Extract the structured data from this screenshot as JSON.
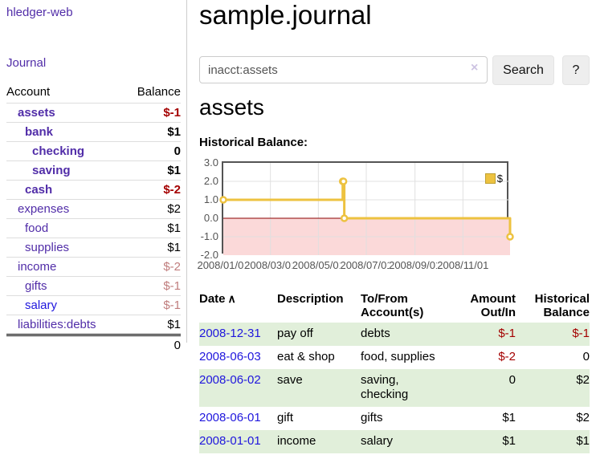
{
  "sidebar": {
    "brand": "hledger-web",
    "nav": {
      "journal": "Journal"
    },
    "table": {
      "headers": {
        "account": "Account",
        "balance": "Balance"
      },
      "accounts": [
        {
          "name": "assets",
          "balance": "$-1"
        },
        {
          "name": "bank",
          "balance": "$1"
        },
        {
          "name": "checking",
          "balance": "0"
        },
        {
          "name": "saving",
          "balance": "$1"
        },
        {
          "name": "cash",
          "balance": "$-2"
        },
        {
          "name": "expenses",
          "balance": "$2"
        },
        {
          "name": "food",
          "balance": "$1"
        },
        {
          "name": "supplies",
          "balance": "$1"
        },
        {
          "name": "income",
          "balance": "$-2"
        },
        {
          "name": "gifts",
          "balance": "$-1"
        },
        {
          "name": "salary",
          "balance": "$-1"
        },
        {
          "name": "liabilities:debts",
          "balance": "$1"
        }
      ],
      "total": "0"
    }
  },
  "main": {
    "title": "sample.journal",
    "search": {
      "value": "inacct:assets",
      "clear_icon": "×",
      "search_button": "Search",
      "help_button": "?"
    },
    "account_heading": "assets",
    "chart_heading": "Historical Balance:"
  },
  "chart_data": {
    "type": "line",
    "title": "Historical Balance:",
    "step": true,
    "series": [
      {
        "name": "$",
        "color": "#edc240",
        "points": [
          {
            "x": "2008-01-01",
            "y": 1
          },
          {
            "x": "2008-06-01",
            "y": 2
          },
          {
            "x": "2008-06-02",
            "y": 2
          },
          {
            "x": "2008-06-03",
            "y": 0
          },
          {
            "x": "2008-12-31",
            "y": -1
          }
        ]
      }
    ],
    "x_range": [
      "2008-01-01",
      "2008-12-31"
    ],
    "ylim": [
      -2,
      3
    ],
    "y_ticks": [
      "3.0",
      "2.0",
      "1.0",
      "0.0",
      "-1.0",
      "-2.0"
    ],
    "x_ticks": [
      {
        "date": "2008-01-01",
        "label": "2008/01/01"
      },
      {
        "date": "2008-03-01",
        "label": "2008/03/01"
      },
      {
        "date": "2008-05-01",
        "label": "2008/05/01"
      },
      {
        "date": "2008-07-01",
        "label": "2008/07/01"
      },
      {
        "date": "2008-09-01",
        "label": "2008/09/01"
      },
      {
        "date": "2008-11-01",
        "label": "2008/11/01"
      }
    ],
    "legend": {
      "label": "$",
      "position": "top-right"
    },
    "grid_on": true,
    "negative_region_color": "#fbd9d9",
    "zero_line_color": "#8b0000"
  },
  "register": {
    "headers": {
      "date": "Date",
      "sort_indicator": "∧",
      "description": "Description",
      "accounts": "To/From Account(s)",
      "amount": "Amount Out/In",
      "balance": "Historical Balance"
    },
    "rows": [
      {
        "date": "2008-12-31",
        "description": "pay off",
        "accounts": "debts",
        "amount": "$-1",
        "balance": "$-1"
      },
      {
        "date": "2008-06-03",
        "description": "eat & shop",
        "accounts": "food, supplies",
        "amount": "$-2",
        "balance": "0"
      },
      {
        "date": "2008-06-02",
        "description": "save",
        "accounts": "saving, checking",
        "amount": "0",
        "balance": "$2"
      },
      {
        "date": "2008-06-01",
        "description": "gift",
        "accounts": "gifts",
        "amount": "$1",
        "balance": "$2"
      },
      {
        "date": "2008-01-01",
        "description": "income",
        "accounts": "salary",
        "amount": "$1",
        "balance": "$1"
      }
    ]
  }
}
